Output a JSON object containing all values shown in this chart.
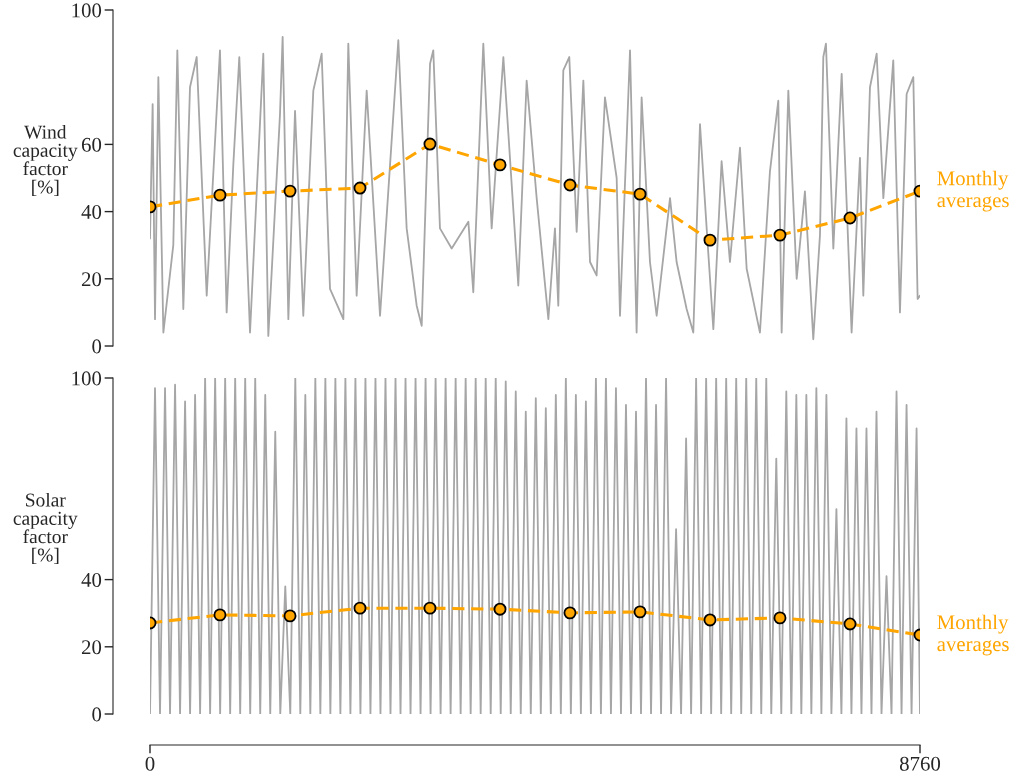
{
  "chart_data": [
    {
      "type": "line",
      "ylabel": "Wind capacity factor [%]",
      "xlim": [
        0,
        8760
      ],
      "ylim": [
        0,
        100
      ],
      "yticks": [
        0,
        20,
        40,
        60,
        100
      ],
      "tick_labels": "y",
      "legend": false,
      "grid": false,
      "series": [
        {
          "color": "#a6a6a6",
          "marker": "none",
          "line_style": "solid",
          "x": [
            0,
            30,
            57,
            95,
            152,
            265,
            311,
            379,
            455,
            531,
            645,
            796,
            872,
            948,
            1016,
            1138,
            1289,
            1346,
            1479,
            1509,
            1574,
            1650,
            1744,
            1858,
            1953,
            2048,
            2200,
            2256,
            2351,
            2465,
            2617,
            2825,
            2920,
            3034,
            3091,
            3186,
            3223,
            3299,
            3432,
            3622,
            3678,
            3792,
            3887,
            4020,
            4190,
            4285,
            4399,
            4532,
            4607,
            4645,
            4702,
            4770,
            4854,
            4930,
            5006,
            5081,
            5176,
            5309,
            5347,
            5461,
            5536,
            5593,
            5688,
            5764,
            5916,
            5991,
            6105,
            6181,
            6257,
            6333,
            6409,
            6503,
            6598,
            6712,
            6788,
            6939,
            7053,
            7148,
            7186,
            7262,
            7357,
            7451,
            7546,
            7622,
            7660,
            7690,
            7774,
            7869,
            7982,
            8077,
            8115,
            8191,
            8267,
            8343,
            8456,
            8532,
            8608,
            8684,
            8733,
            8760
          ],
          "values": [
            32,
            72,
            8,
            80,
            4,
            30,
            88,
            11,
            77,
            86,
            15,
            88,
            10,
            54,
            86,
            4,
            87,
            3,
            69,
            92,
            8,
            70,
            9,
            76,
            87,
            17,
            8,
            90,
            15,
            76,
            9,
            91,
            35,
            12,
            6,
            84,
            88,
            35,
            29,
            37,
            16,
            90,
            35,
            86,
            18,
            79,
            44,
            8,
            35,
            12,
            82,
            86,
            34,
            79,
            25,
            21,
            74,
            50,
            9,
            88,
            4,
            74,
            25,
            9,
            44,
            25,
            11,
            4,
            66,
            35,
            5,
            55,
            25,
            59,
            23,
            4,
            52,
            73,
            4,
            76,
            20,
            46,
            2,
            33,
            86,
            90,
            29,
            81,
            4,
            56,
            15,
            77,
            87,
            44,
            85,
            10,
            75,
            80,
            14,
            15
          ]
        },
        {
          "name": "Monthly averages",
          "color": "#ffa500",
          "marker": "circle",
          "line_style": "dashed",
          "x": [
            0,
            796,
            1593,
            2389,
            3185,
            3982,
            4778,
            5575,
            6371,
            7167,
            7964,
            8760
          ],
          "values": [
            41.4,
            44.9,
            46.1,
            47.0,
            60.1,
            53.9,
            47.9,
            45.2,
            31.5,
            33.0,
            38.1,
            46.1
          ]
        }
      ]
    },
    {
      "type": "line",
      "ylabel": "Solar capacity factor [%]",
      "xlim": [
        0,
        8760
      ],
      "xticks": [
        0,
        8760
      ],
      "ylim": [
        0,
        100
      ],
      "yticks": [
        0,
        20,
        40,
        100
      ],
      "legend": false,
      "grid": false,
      "series": [
        {
          "color": "#a6a6a6",
          "marker": "none",
          "line_style": "solid",
          "x": [
            0,
            57,
            114,
            171,
            228,
            285,
            342,
            399,
            456,
            513,
            570,
            627,
            684,
            741,
            798,
            855,
            912,
            969,
            1026,
            1083,
            1140,
            1197,
            1254,
            1311,
            1368,
            1425,
            1482,
            1539,
            1596,
            1653,
            1710,
            1767,
            1824,
            1881,
            1938,
            1995,
            2052,
            2109,
            2166,
            2223,
            2280,
            2337,
            2394,
            2451,
            2508,
            2565,
            2622,
            2679,
            2736,
            2793,
            2850,
            2907,
            2964,
            3021,
            3078,
            3135,
            3192,
            3249,
            3306,
            3363,
            3420,
            3477,
            3534,
            3591,
            3648,
            3705,
            3762,
            3819,
            3876,
            3933,
            3990,
            4047,
            4104,
            4161,
            4218,
            4275,
            4332,
            4389,
            4446,
            4503,
            4560,
            4617,
            4674,
            4731,
            4788,
            4845,
            4902,
            4959,
            5016,
            5073,
            5130,
            5187,
            5244,
            5301,
            5358,
            5415,
            5472,
            5529,
            5586,
            5643,
            5700,
            5757,
            5814,
            5871,
            5928,
            5985,
            6042,
            6099,
            6156,
            6213,
            6270,
            6327,
            6384,
            6441,
            6498,
            6555,
            6612,
            6669,
            6726,
            6783,
            6840,
            6897,
            6954,
            7011,
            7068,
            7125,
            7182,
            7239,
            7296,
            7353,
            7410,
            7467,
            7524,
            7581,
            7638,
            7695,
            7752,
            7809,
            7866,
            7923,
            7980,
            8037,
            8094,
            8151,
            8208,
            8265,
            8322,
            8379,
            8436,
            8493,
            8550,
            8607,
            8664,
            8721,
            8760
          ],
          "values": [
            0,
            97,
            0,
            97,
            0,
            98,
            0,
            93,
            0,
            95,
            0,
            100,
            0,
            100,
            0,
            100,
            0,
            100,
            0,
            100,
            0,
            100,
            0,
            95,
            0,
            84,
            0,
            38,
            0,
            100,
            0,
            95,
            0,
            100,
            0,
            100,
            0,
            100,
            0,
            100,
            0,
            100,
            0,
            100,
            0,
            100,
            0,
            100,
            0,
            100,
            0,
            100,
            0,
            100,
            0,
            100,
            0,
            100,
            0,
            100,
            0,
            100,
            0,
            100,
            0,
            100,
            0,
            100,
            0,
            100,
            0,
            99,
            0,
            96,
            0,
            90,
            0,
            94,
            0,
            91,
            0,
            95,
            0,
            100,
            0,
            95,
            0,
            93,
            0,
            100,
            0,
            100,
            0,
            97,
            0,
            92,
            0,
            90,
            0,
            100,
            0,
            92,
            0,
            100,
            0,
            55,
            0,
            82,
            0,
            100,
            0,
            100,
            0,
            100,
            0,
            100,
            0,
            100,
            0,
            100,
            0,
            100,
            0,
            100,
            0,
            76,
            0,
            96,
            0,
            95,
            0,
            95,
            0,
            97,
            0,
            95,
            0,
            61,
            0,
            88,
            0,
            85,
            0,
            85,
            0,
            90,
            0,
            41,
            0,
            96,
            0,
            92,
            0,
            85,
            0
          ]
        },
        {
          "name": "Monthly averages",
          "color": "#ffa500",
          "marker": "circle",
          "line_style": "dashed",
          "x": [
            0,
            796,
            1593,
            2389,
            3185,
            3982,
            4778,
            5575,
            6371,
            7167,
            7964,
            8760
          ],
          "values": [
            27.1,
            29.5,
            29.2,
            31.5,
            31.5,
            31.2,
            30.1,
            30.4,
            28.0,
            28.6,
            26.8,
            23.5
          ]
        }
      ]
    }
  ]
}
